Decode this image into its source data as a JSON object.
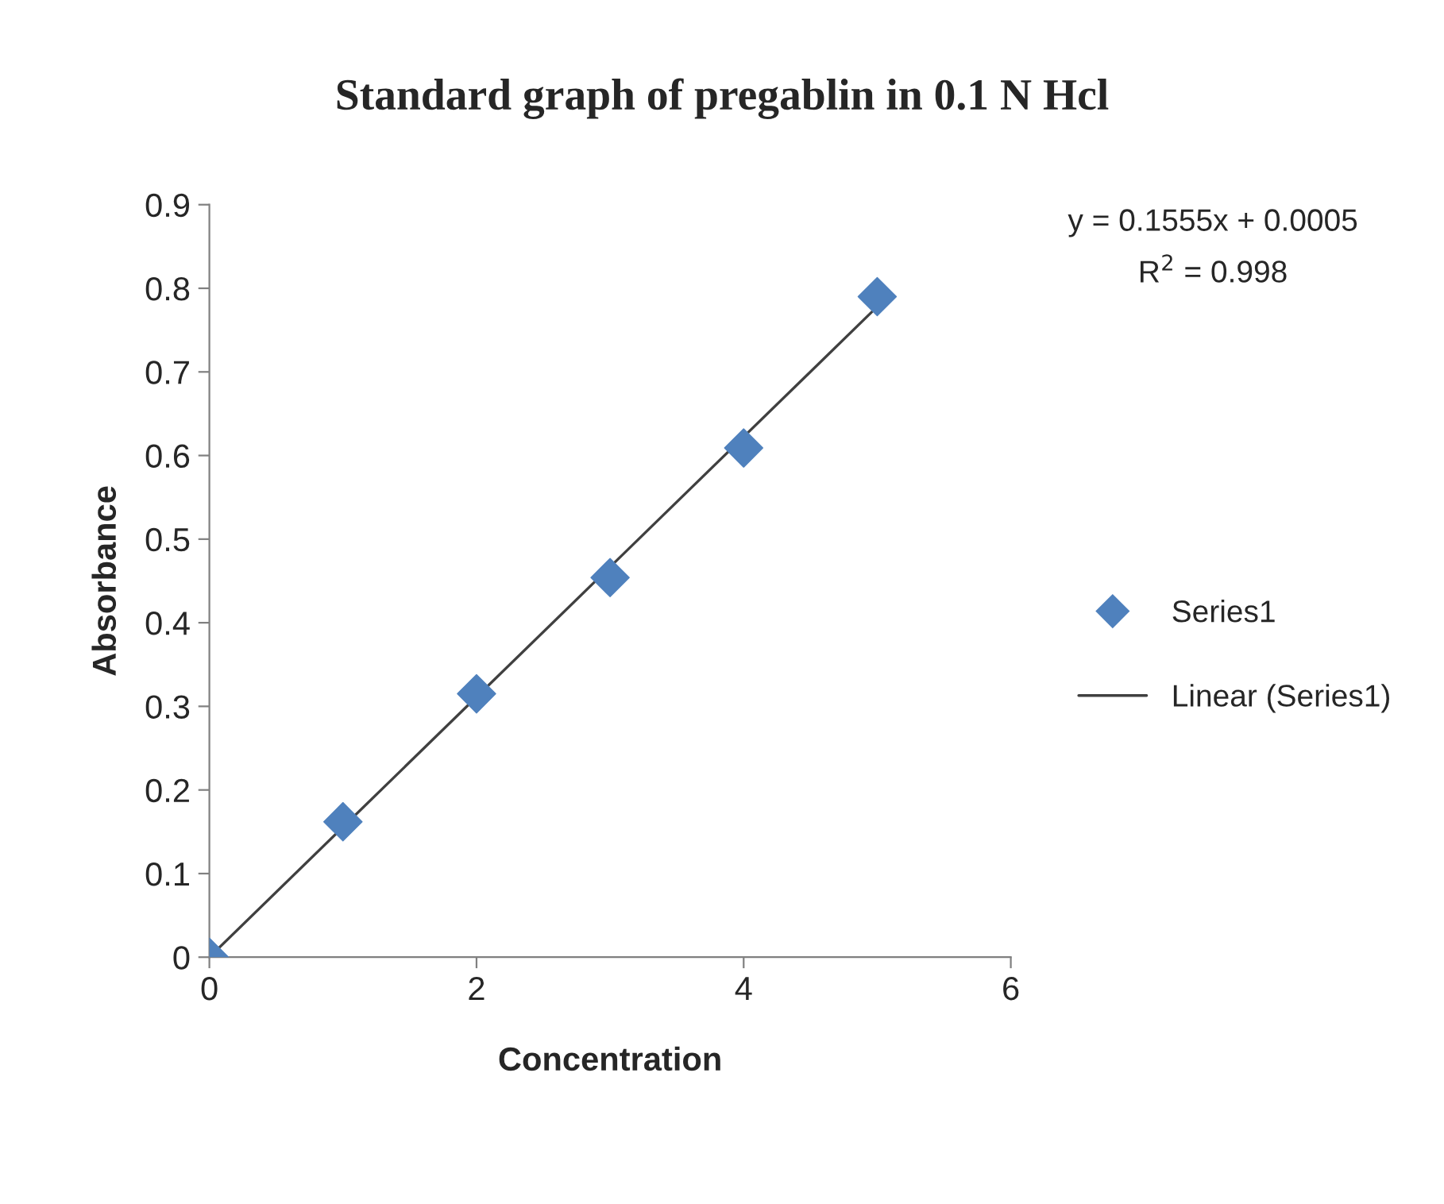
{
  "chart_data": {
    "type": "scatter",
    "title": "Standard graph of pregablin in 0.1 N Hcl",
    "xlabel": "Concentration",
    "ylabel": "Absorbance",
    "series": [
      {
        "name": "Series1",
        "color": "#4f81bd",
        "marker": "diamond",
        "x": [
          0,
          1,
          2,
          3,
          4,
          5
        ],
        "values": [
          0,
          0.162,
          0.315,
          0.454,
          0.609,
          0.79
        ]
      },
      {
        "name": "Linear (Series1)",
        "type": "line",
        "color": "#404040",
        "marker": "none",
        "line_style": "solid",
        "x": [
          0,
          5
        ],
        "values": [
          0.0,
          0.778
        ]
      }
    ],
    "annotations": [
      "y = 0.1555x + 0.0005",
      "R$^{2}$ = 0.998"
    ],
    "xlim": [
      0,
      6
    ],
    "xticks": [
      0,
      2,
      4,
      6
    ],
    "ylim": [
      0,
      0.9
    ],
    "yticks": [
      0,
      0.1,
      0.2,
      0.3,
      0.4,
      0.5,
      0.6,
      0.7,
      0.8,
      0.9
    ],
    "grid": false,
    "legend": "right"
  }
}
